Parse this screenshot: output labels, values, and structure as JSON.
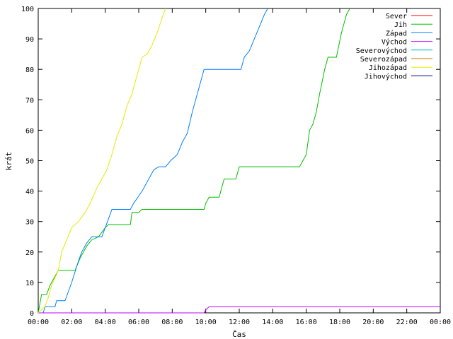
{
  "chart_data": {
    "type": "line",
    "xlabel": "Čas",
    "ylabel": "krát",
    "xlim": [
      0,
      24
    ],
    "ylim": [
      0,
      100
    ],
    "x_ticks": [
      0,
      2,
      4,
      6,
      8,
      10,
      12,
      14,
      16,
      18,
      20,
      22,
      24
    ],
    "x_tick_labels": [
      "00:00",
      "02:00",
      "04:00",
      "06:00",
      "08:00",
      "10:00",
      "12:00",
      "14:00",
      "16:00",
      "18:00",
      "20:00",
      "22:00",
      "00:00"
    ],
    "y_ticks": [
      0,
      10,
      20,
      30,
      40,
      50,
      60,
      70,
      80,
      90,
      100
    ],
    "y_tick_labels": [
      "0",
      "10",
      "20",
      "30",
      "40",
      "50",
      "60",
      "70",
      "80",
      "90",
      "100"
    ],
    "grid": false,
    "legend_position": "top-right",
    "series": [
      {
        "name": "Sever",
        "color": "#ff0000",
        "points": []
      },
      {
        "name": "Jih",
        "color": "#00c000",
        "points": [
          [
            0,
            0
          ],
          [
            0.2,
            6
          ],
          [
            0.5,
            6
          ],
          [
            0.7,
            9
          ],
          [
            1.0,
            12
          ],
          [
            1.2,
            14
          ],
          [
            2.2,
            14
          ],
          [
            2.5,
            18
          ],
          [
            2.9,
            22
          ],
          [
            3.2,
            24
          ],
          [
            3.6,
            25
          ],
          [
            4.0,
            28
          ],
          [
            4.2,
            29
          ],
          [
            5.5,
            29
          ],
          [
            5.6,
            33
          ],
          [
            6.0,
            33
          ],
          [
            6.2,
            34
          ],
          [
            9.9,
            34
          ],
          [
            10.0,
            36
          ],
          [
            10.2,
            38
          ],
          [
            10.8,
            38
          ],
          [
            11.0,
            42
          ],
          [
            11.1,
            44
          ],
          [
            11.8,
            44
          ],
          [
            12.0,
            48
          ],
          [
            15.6,
            48
          ],
          [
            15.8,
            50
          ],
          [
            16.0,
            52
          ],
          [
            16.2,
            60
          ],
          [
            16.4,
            62
          ],
          [
            16.6,
            66
          ],
          [
            16.8,
            72
          ],
          [
            17.1,
            80
          ],
          [
            17.3,
            84
          ],
          [
            17.8,
            84
          ],
          [
            18.1,
            92
          ],
          [
            18.4,
            98
          ],
          [
            18.6,
            100
          ]
        ]
      },
      {
        "name": "Západ",
        "color": "#0080ff",
        "points": [
          [
            0,
            0
          ],
          [
            0.3,
            0
          ],
          [
            0.4,
            2
          ],
          [
            1.0,
            2
          ],
          [
            1.1,
            4
          ],
          [
            1.6,
            4
          ],
          [
            2.0,
            10
          ],
          [
            2.4,
            17
          ],
          [
            2.6,
            20
          ],
          [
            2.9,
            23
          ],
          [
            3.2,
            25
          ],
          [
            3.8,
            25
          ],
          [
            4.0,
            28
          ],
          [
            4.2,
            31
          ],
          [
            4.4,
            34
          ],
          [
            5.5,
            34
          ],
          [
            5.7,
            36
          ],
          [
            6.2,
            40
          ],
          [
            6.6,
            44
          ],
          [
            6.9,
            47
          ],
          [
            7.2,
            48
          ],
          [
            7.6,
            48
          ],
          [
            7.9,
            50
          ],
          [
            8.3,
            52
          ],
          [
            8.6,
            56
          ],
          [
            8.9,
            59
          ],
          [
            9.2,
            66
          ],
          [
            9.5,
            72
          ],
          [
            9.7,
            76
          ],
          [
            9.9,
            80
          ],
          [
            12.1,
            80
          ],
          [
            12.3,
            84
          ],
          [
            12.6,
            86
          ],
          [
            12.9,
            90
          ],
          [
            13.2,
            94
          ],
          [
            13.5,
            98
          ],
          [
            13.7,
            100
          ]
        ]
      },
      {
        "name": "Východ",
        "color": "#c000ff",
        "points": [
          [
            0,
            0
          ],
          [
            9.9,
            0
          ],
          [
            10.0,
            1
          ],
          [
            10.2,
            2
          ],
          [
            10.9,
            2
          ],
          [
            11.0,
            2
          ],
          [
            24,
            2
          ]
        ]
      },
      {
        "name": "Severovýchod",
        "color": "#00c0c0",
        "points": []
      },
      {
        "name": "Severozápad",
        "color": "#c08000",
        "points": []
      },
      {
        "name": "Jihozápad",
        "color": "#e8e800",
        "points": [
          [
            0,
            0
          ],
          [
            0.4,
            2
          ],
          [
            0.6,
            5
          ],
          [
            0.8,
            9
          ],
          [
            1.2,
            14
          ],
          [
            1.4,
            20
          ],
          [
            1.7,
            24
          ],
          [
            2.0,
            28
          ],
          [
            2.4,
            30
          ],
          [
            2.8,
            33
          ],
          [
            3.1,
            36
          ],
          [
            3.5,
            41
          ],
          [
            3.8,
            44
          ],
          [
            4.1,
            47
          ],
          [
            4.4,
            52
          ],
          [
            4.7,
            58
          ],
          [
            5.0,
            62
          ],
          [
            5.3,
            68
          ],
          [
            5.6,
            72
          ],
          [
            5.9,
            78
          ],
          [
            6.2,
            84
          ],
          [
            6.5,
            85
          ],
          [
            6.8,
            88
          ],
          [
            7.1,
            92
          ],
          [
            7.4,
            97
          ],
          [
            7.6,
            100
          ]
        ]
      },
      {
        "name": "Jihovýchod",
        "color": "#000080",
        "points": []
      }
    ]
  }
}
